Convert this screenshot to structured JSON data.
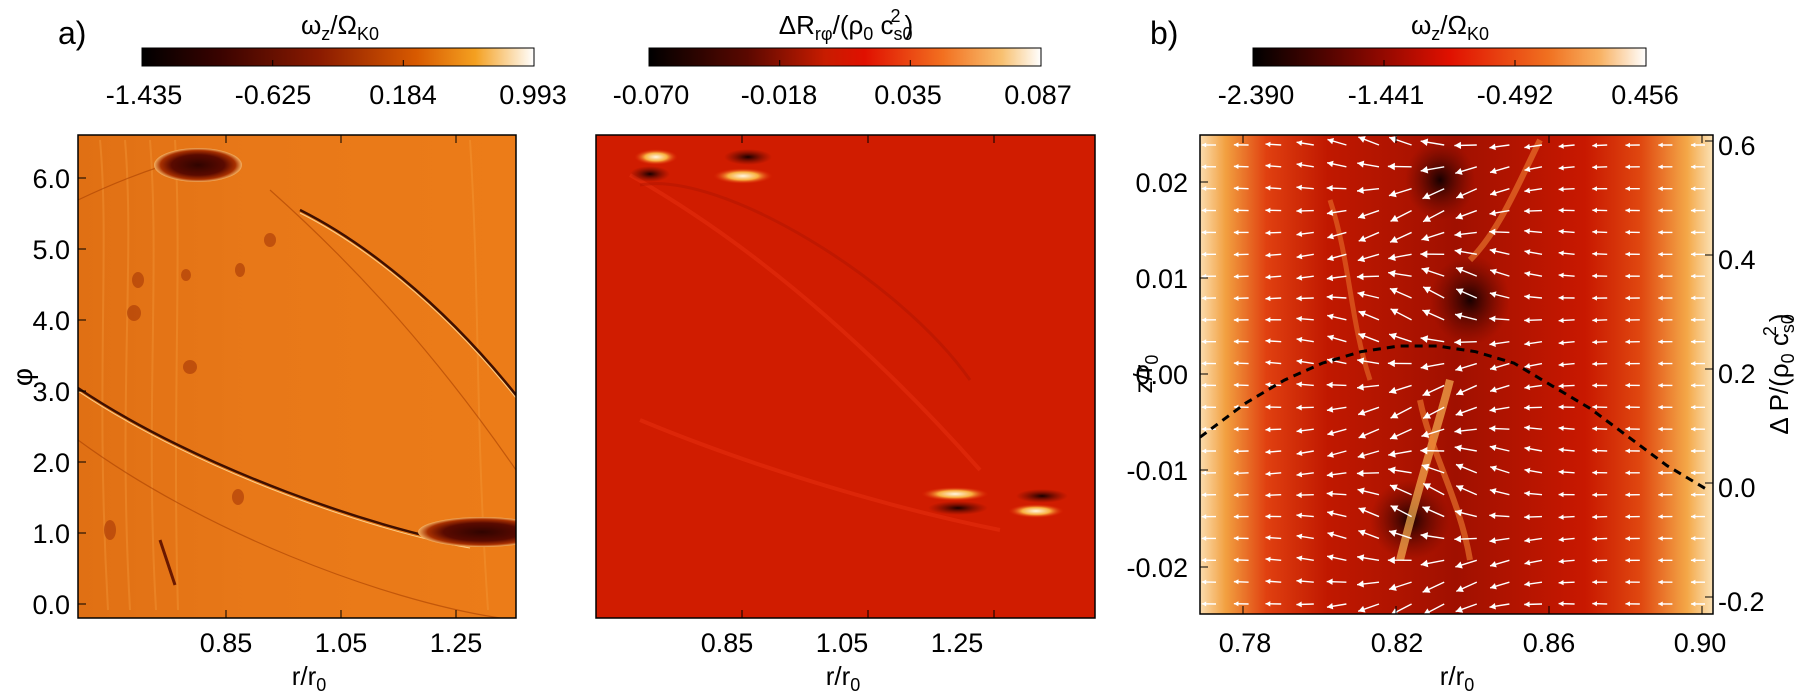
{
  "figure": {
    "panel_labels": [
      "a)",
      "b)"
    ]
  },
  "chart_data": [
    {
      "type": "heatmap",
      "panel": "a)",
      "title": "",
      "colorbar": {
        "label": "ω_z/Ω_K0",
        "ticks": [
          "-1.435",
          "-0.625",
          "0.184",
          "0.993"
        ],
        "range": [
          -1.435,
          0.993
        ]
      },
      "xlabel": "r/r_0",
      "ylabel": "φ",
      "xlim": [
        0.55,
        1.5
      ],
      "ylim": [
        -0.1,
        6.3
      ],
      "xticks": [
        "0.85",
        "1.05",
        "1.25"
      ],
      "yticks": [
        "0.0",
        "1.0",
        "2.0",
        "3.0",
        "4.0",
        "5.0",
        "6.0"
      ],
      "features": [
        {
          "kind": "vortex",
          "r": 0.85,
          "phi": 5.9,
          "value": -1.435
        },
        {
          "kind": "vortex",
          "r": 1.26,
          "phi": 1.5,
          "value": -1.2
        }
      ]
    },
    {
      "type": "heatmap",
      "panel": "a)",
      "title": "",
      "colorbar": {
        "label": "ΔR_rφ/(ρ_0 c_s0^2)",
        "ticks": [
          "-0.070",
          "-0.018",
          "0.035",
          "0.087"
        ],
        "range": [
          -0.07,
          0.087
        ]
      },
      "xlabel": "r/r_0",
      "ylabel": "",
      "xlim": [
        0.55,
        1.5
      ],
      "ylim": [
        -0.1,
        6.3
      ],
      "xticks": [
        "0.85",
        "1.05",
        "1.25"
      ]
    },
    {
      "type": "heatmap",
      "panel": "b)",
      "title": "",
      "colorbar": {
        "label": "ω_z/Ω_K0",
        "ticks": [
          "-2.390",
          "-1.441",
          "-0.492",
          "0.456"
        ],
        "range": [
          -2.39,
          0.456
        ]
      },
      "xlabel": "r/r_0",
      "ylabel": "z/r_0",
      "y2label": "Δ P/(ρ_0 c_s0^2)",
      "xlim": [
        0.768,
        0.902
      ],
      "ylim": [
        -0.025,
        0.025
      ],
      "y2lim": [
        -0.22,
        0.62
      ],
      "xticks": [
        "0.78",
        "0.82",
        "0.86",
        "0.90"
      ],
      "yticks": [
        "-0.02",
        "-0.01",
        "0.00",
        "0.01",
        "0.02"
      ],
      "y2ticks": [
        "-0.2",
        "0.0",
        "0.2",
        "0.4",
        "0.6"
      ],
      "overlay": "velocity arrows (white)",
      "line_series": {
        "style": "dashed black",
        "axis": "right",
        "x": [
          0.768,
          0.78,
          0.79,
          0.8,
          0.81,
          0.82,
          0.83,
          0.84,
          0.85,
          0.86,
          0.87,
          0.88,
          0.89,
          0.9
        ],
        "y": [
          0.09,
          0.15,
          0.19,
          0.22,
          0.24,
          0.25,
          0.25,
          0.24,
          0.22,
          0.18,
          0.14,
          0.09,
          0.04,
          0.0
        ]
      }
    }
  ]
}
